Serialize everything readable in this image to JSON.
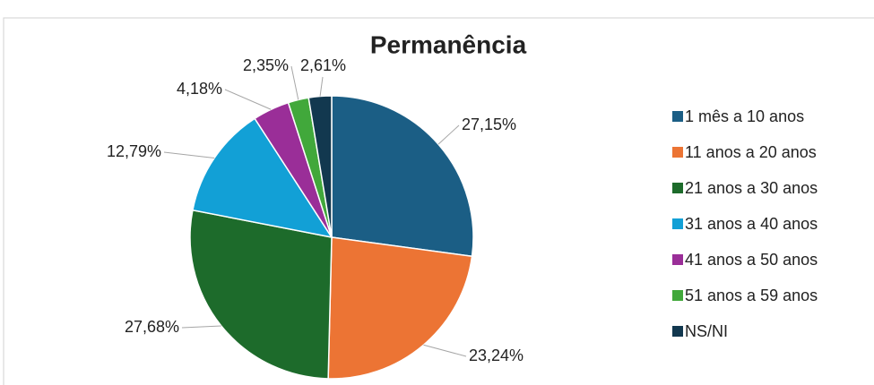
{
  "chart_data": {
    "type": "pie",
    "title": "Permanência",
    "categories": [
      "1 mês a 10 anos",
      "11 anos a 20 anos",
      "21 anos a 30 anos",
      "31 anos a 40 anos",
      "41 anos a 50 anos",
      "51 anos a 59 anos",
      "NS/NI"
    ],
    "values": [
      27.15,
      23.24,
      27.68,
      12.79,
      4.18,
      2.35,
      2.61
    ],
    "value_labels": [
      "27,15%",
      "23,24%",
      "27,68%",
      "12,79%",
      "4,18%",
      "2,35%",
      "2,61%"
    ],
    "colors": [
      "#1b5e85",
      "#ec7434",
      "#1d6b2b",
      "#12a0d6",
      "#9a2e98",
      "#41a83b",
      "#12384f"
    ],
    "legend": "right"
  }
}
